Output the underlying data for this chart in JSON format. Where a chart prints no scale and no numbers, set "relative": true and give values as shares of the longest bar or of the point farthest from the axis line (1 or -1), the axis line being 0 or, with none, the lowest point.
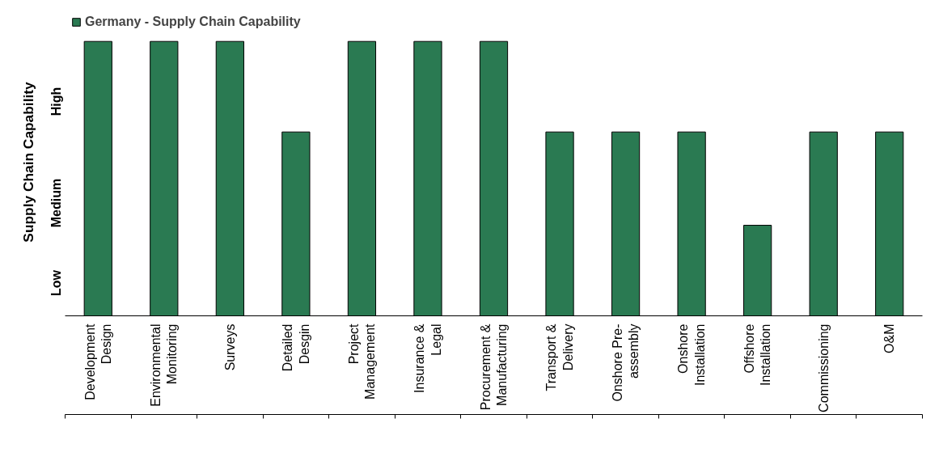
{
  "chart_data": {
    "type": "bar",
    "categories": [
      "Development Design",
      "Environmental Monitoring",
      "Surveys",
      "Detailed Desgin",
      "Project Management",
      "Insurance & Legal",
      "Procurement & Manufacturing",
      "Transport & Delivery",
      "Onshore Pre-assembly",
      "Onshore Installation",
      "Offshore Installation",
      "Commissioning",
      "O&M"
    ],
    "series": [
      {
        "name": "Germany - Supply Chain Capability",
        "color": "#2a7a52",
        "values": [
          1,
          1,
          1,
          0.67,
          1,
          1,
          1,
          0.67,
          0.67,
          0.67,
          0.33,
          0.67,
          0.67
        ]
      }
    ],
    "relative": true,
    "ylabel": "Supply Chain Capability",
    "annotations": [
      "Low",
      "Medium",
      "High"
    ],
    "legend": "top left"
  }
}
